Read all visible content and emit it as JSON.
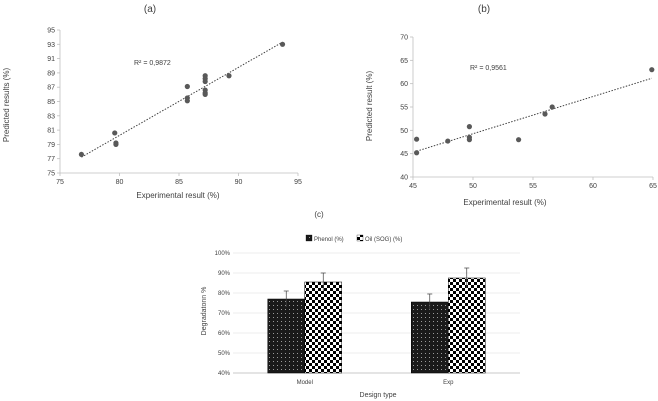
{
  "panels": {
    "a_label": "(a)",
    "b_label": "(b)",
    "c_label": "(c)"
  },
  "colors": {
    "axis": "#bfbfbf",
    "marker": "#595959",
    "text": "#404040",
    "bar_dark": "#1a1a1a",
    "bar_check": "#000000"
  },
  "chart_data": [
    {
      "type": "scatter",
      "panel": "(a)",
      "xlabel": "Experimental result (%)",
      "ylabel": "Predicted results (%)",
      "xlim": [
        75,
        95
      ],
      "ylim": [
        75,
        95
      ],
      "xticks": [
        "75",
        "80",
        "85",
        "90",
        "95"
      ],
      "yticks": [
        "75",
        "77",
        "79",
        "81",
        "83",
        "85",
        "87",
        "89",
        "91",
        "93",
        "95"
      ],
      "annotation": "R² = 0,9872",
      "trendline": "linear-dotted",
      "points": [
        [
          76.8,
          77.6
        ],
        [
          79.6,
          80.6
        ],
        [
          79.7,
          79.2
        ],
        [
          79.7,
          79.0
        ],
        [
          85.7,
          87.1
        ],
        [
          85.7,
          85.5
        ],
        [
          85.7,
          85.1
        ],
        [
          87.2,
          88.6
        ],
        [
          87.2,
          88.2
        ],
        [
          87.2,
          87.8
        ],
        [
          87.2,
          86.6
        ],
        [
          87.2,
          86.2
        ],
        [
          87.2,
          86.0
        ],
        [
          89.2,
          88.6
        ],
        [
          93.7,
          93.0
        ]
      ]
    },
    {
      "type": "scatter",
      "panel": "(b)",
      "xlabel": "Experimental result (%)",
      "ylabel": "Predicted result (%)",
      "xlim": [
        45,
        65
      ],
      "ylim": [
        40,
        70
      ],
      "xticks": [
        "45",
        "50",
        "55",
        "60",
        "65"
      ],
      "yticks": [
        "40",
        "45",
        "50",
        "55",
        "60",
        "65",
        "70"
      ],
      "annotation": "R² = 0,9561",
      "trendline": "linear-dotted",
      "points": [
        [
          45.3,
          48.1
        ],
        [
          45.3,
          45.2
        ],
        [
          47.9,
          47.7
        ],
        [
          49.7,
          50.8
        ],
        [
          49.7,
          48.5
        ],
        [
          49.7,
          48.0
        ],
        [
          53.8,
          48.0
        ],
        [
          56.0,
          53.5
        ],
        [
          56.6,
          55.0
        ],
        [
          64.9,
          63.0
        ]
      ]
    },
    {
      "type": "bar",
      "panel": "(c)",
      "xlabel": "Design type",
      "ylabel": "Degradatonn %",
      "ylim": [
        40,
        100
      ],
      "yticks": [
        "40%",
        "50%",
        "60%",
        "70%",
        "80%",
        "90%",
        "100%"
      ],
      "categories": [
        "Model",
        "Exp"
      ],
      "legend": "top-center",
      "series": [
        {
          "name": "Phenol (%)",
          "pattern": "dots",
          "values": [
            77,
            75.5
          ],
          "errors": [
            4,
            4
          ]
        },
        {
          "name": "Oil (SOG) (%)",
          "pattern": "checker",
          "values": [
            85.5,
            87.5
          ],
          "errors": [
            4.5,
            5
          ]
        }
      ]
    }
  ]
}
